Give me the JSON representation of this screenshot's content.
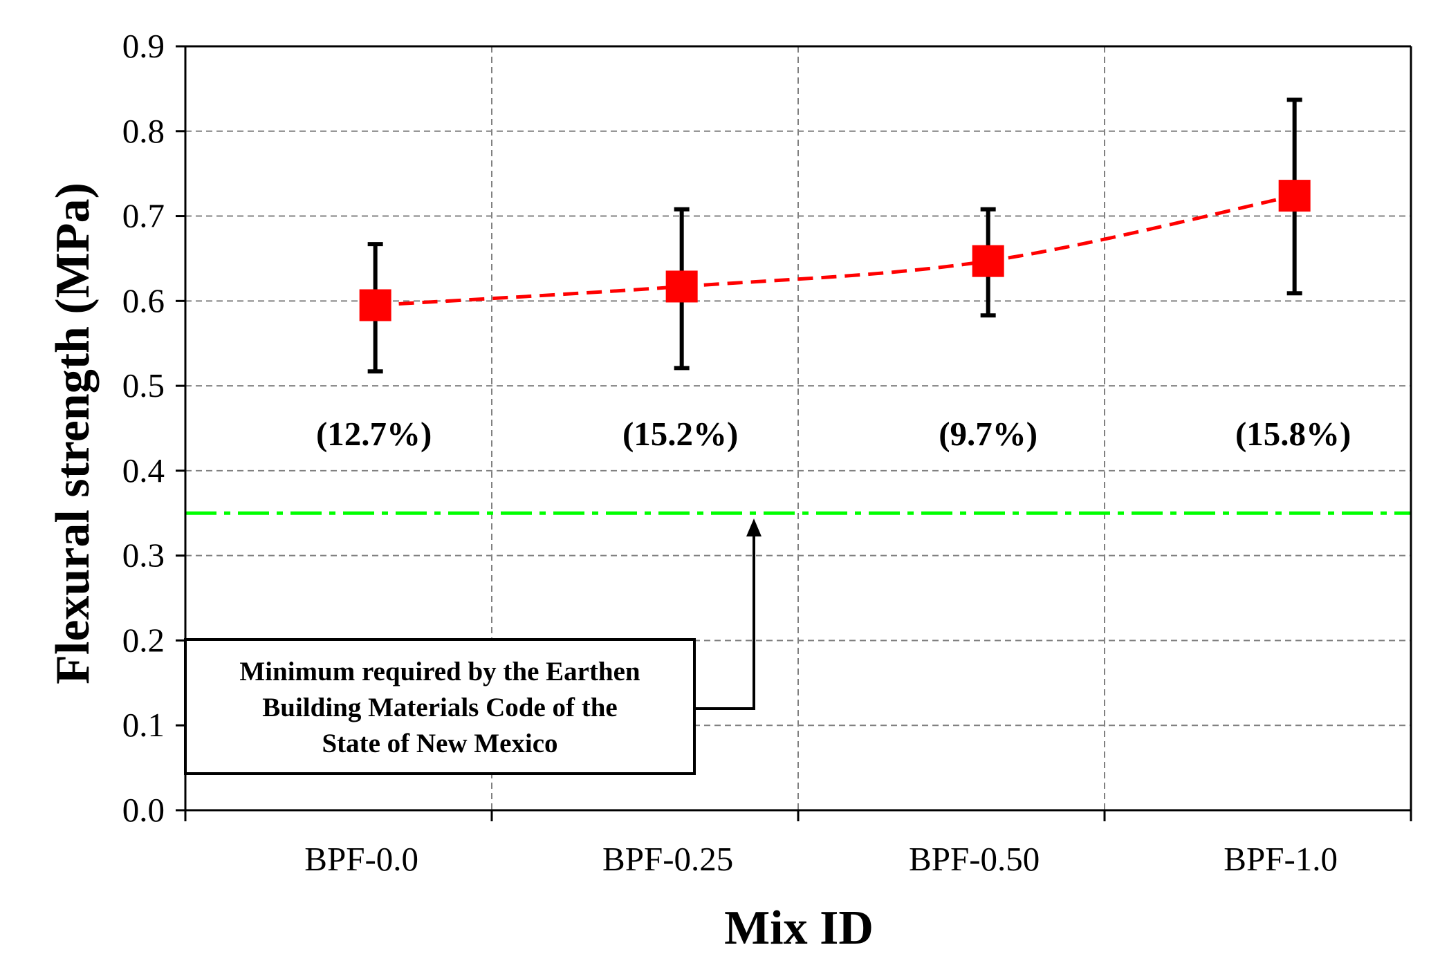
{
  "chart_data": {
    "type": "scatter",
    "title": "",
    "xlabel": "Mix ID",
    "ylabel": "Flexural strength  (MPa)",
    "categories": [
      "BPF-0.0",
      "BPF-0.25",
      "BPF-0.50",
      "BPF-1.0"
    ],
    "ylim": [
      0.0,
      0.9
    ],
    "yticks": [
      "0.0",
      "0.1",
      "0.2",
      "0.3",
      "0.4",
      "0.5",
      "0.6",
      "0.7",
      "0.8",
      "0.9"
    ],
    "grid": true,
    "series": [
      {
        "name": "Flexural strength",
        "marker": "square",
        "color": "#ff0000",
        "values": [
          0.595,
          0.617,
          0.647,
          0.724
        ],
        "error_low": [
          0.517,
          0.521,
          0.583,
          0.609
        ],
        "error_high": [
          0.667,
          0.708,
          0.708,
          0.837
        ],
        "cov_labels": [
          "(12.7%)",
          "(15.2%)",
          "(9.7%)",
          "(15.8%)"
        ]
      }
    ],
    "trendline": {
      "style": "dashed",
      "color": "#ff0000"
    },
    "reference_line": {
      "value": 0.35,
      "style": "dash-dot",
      "color": "#00ff00"
    },
    "annotation": {
      "lines": [
        "Minimum  required  by the Earthen",
        "Building  Materials Code of the",
        "State of New Mexico"
      ],
      "points_to": "reference-line"
    }
  }
}
